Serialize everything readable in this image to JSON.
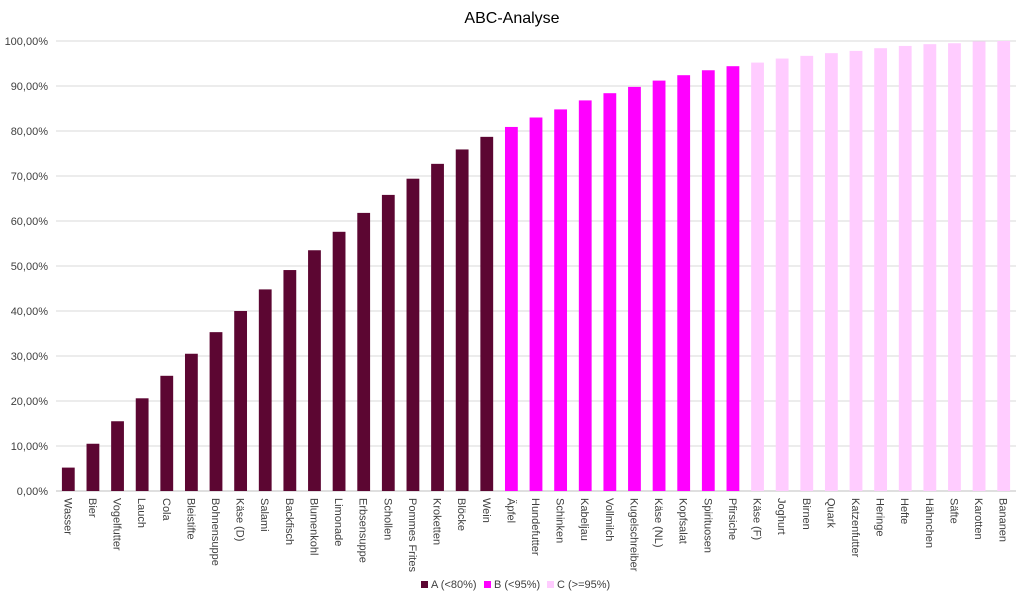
{
  "chart_data": {
    "type": "bar",
    "title": "ABC-Analyse",
    "xlabel": "",
    "ylabel": "",
    "ylim": [
      0,
      100
    ],
    "y_ticks": [
      "0,00%",
      "10,00%",
      "20,00%",
      "30,00%",
      "40,00%",
      "50,00%",
      "60,00%",
      "70,00%",
      "80,00%",
      "90,00%",
      "100,00%"
    ],
    "y_tick_values": [
      0,
      10,
      20,
      30,
      40,
      50,
      60,
      70,
      80,
      90,
      100
    ],
    "grid": true,
    "legend_position": "bottom",
    "categories": [
      "Wasser",
      "Bier",
      "Vogelfutter",
      "Lauch",
      "Cola",
      "Bleistifte",
      "Bohnensuppe",
      "Käse (D)",
      "Salami",
      "Backfisch",
      "Blumenkohl",
      "Limonade",
      "Erbsensuppe",
      "Schollen",
      "Pommes Frites",
      "Kroketten",
      "Blöcke",
      "Wein",
      "Äpfel",
      "Hundefutter",
      "Schinken",
      "Kabeljau",
      "Vollmilch",
      "Kugelschreiber",
      "Käse (NL)",
      "Kopfsalat",
      "Spirituosen",
      "Pfirsiche",
      "Käse (F)",
      "Joghurt",
      "Birnen",
      "Quark",
      "Katzenfutter",
      "Heringe",
      "Hefte",
      "Hähnchen",
      "Säfte",
      "Karotten",
      "Bananen"
    ],
    "values": [
      5.2,
      10.5,
      15.5,
      20.6,
      25.6,
      30.5,
      35.3,
      40.0,
      44.8,
      49.1,
      53.5,
      57.6,
      61.8,
      65.8,
      69.4,
      72.7,
      75.9,
      78.7,
      80.9,
      83.0,
      84.8,
      86.8,
      88.4,
      89.8,
      91.2,
      92.4,
      93.5,
      94.4,
      95.2,
      96.1,
      96.7,
      97.3,
      97.8,
      98.4,
      98.9,
      99.3,
      99.5,
      99.9,
      100.0
    ],
    "series": [
      {
        "name": "A (<80%)",
        "color": "#5c0632",
        "from": 0,
        "to": 17
      },
      {
        "name": "B (<95%)",
        "color": "#ff00ff",
        "from": 18,
        "to": 27
      },
      {
        "name": "C (>=95%)",
        "color": "#ffccff",
        "from": 28,
        "to": 38
      }
    ]
  }
}
